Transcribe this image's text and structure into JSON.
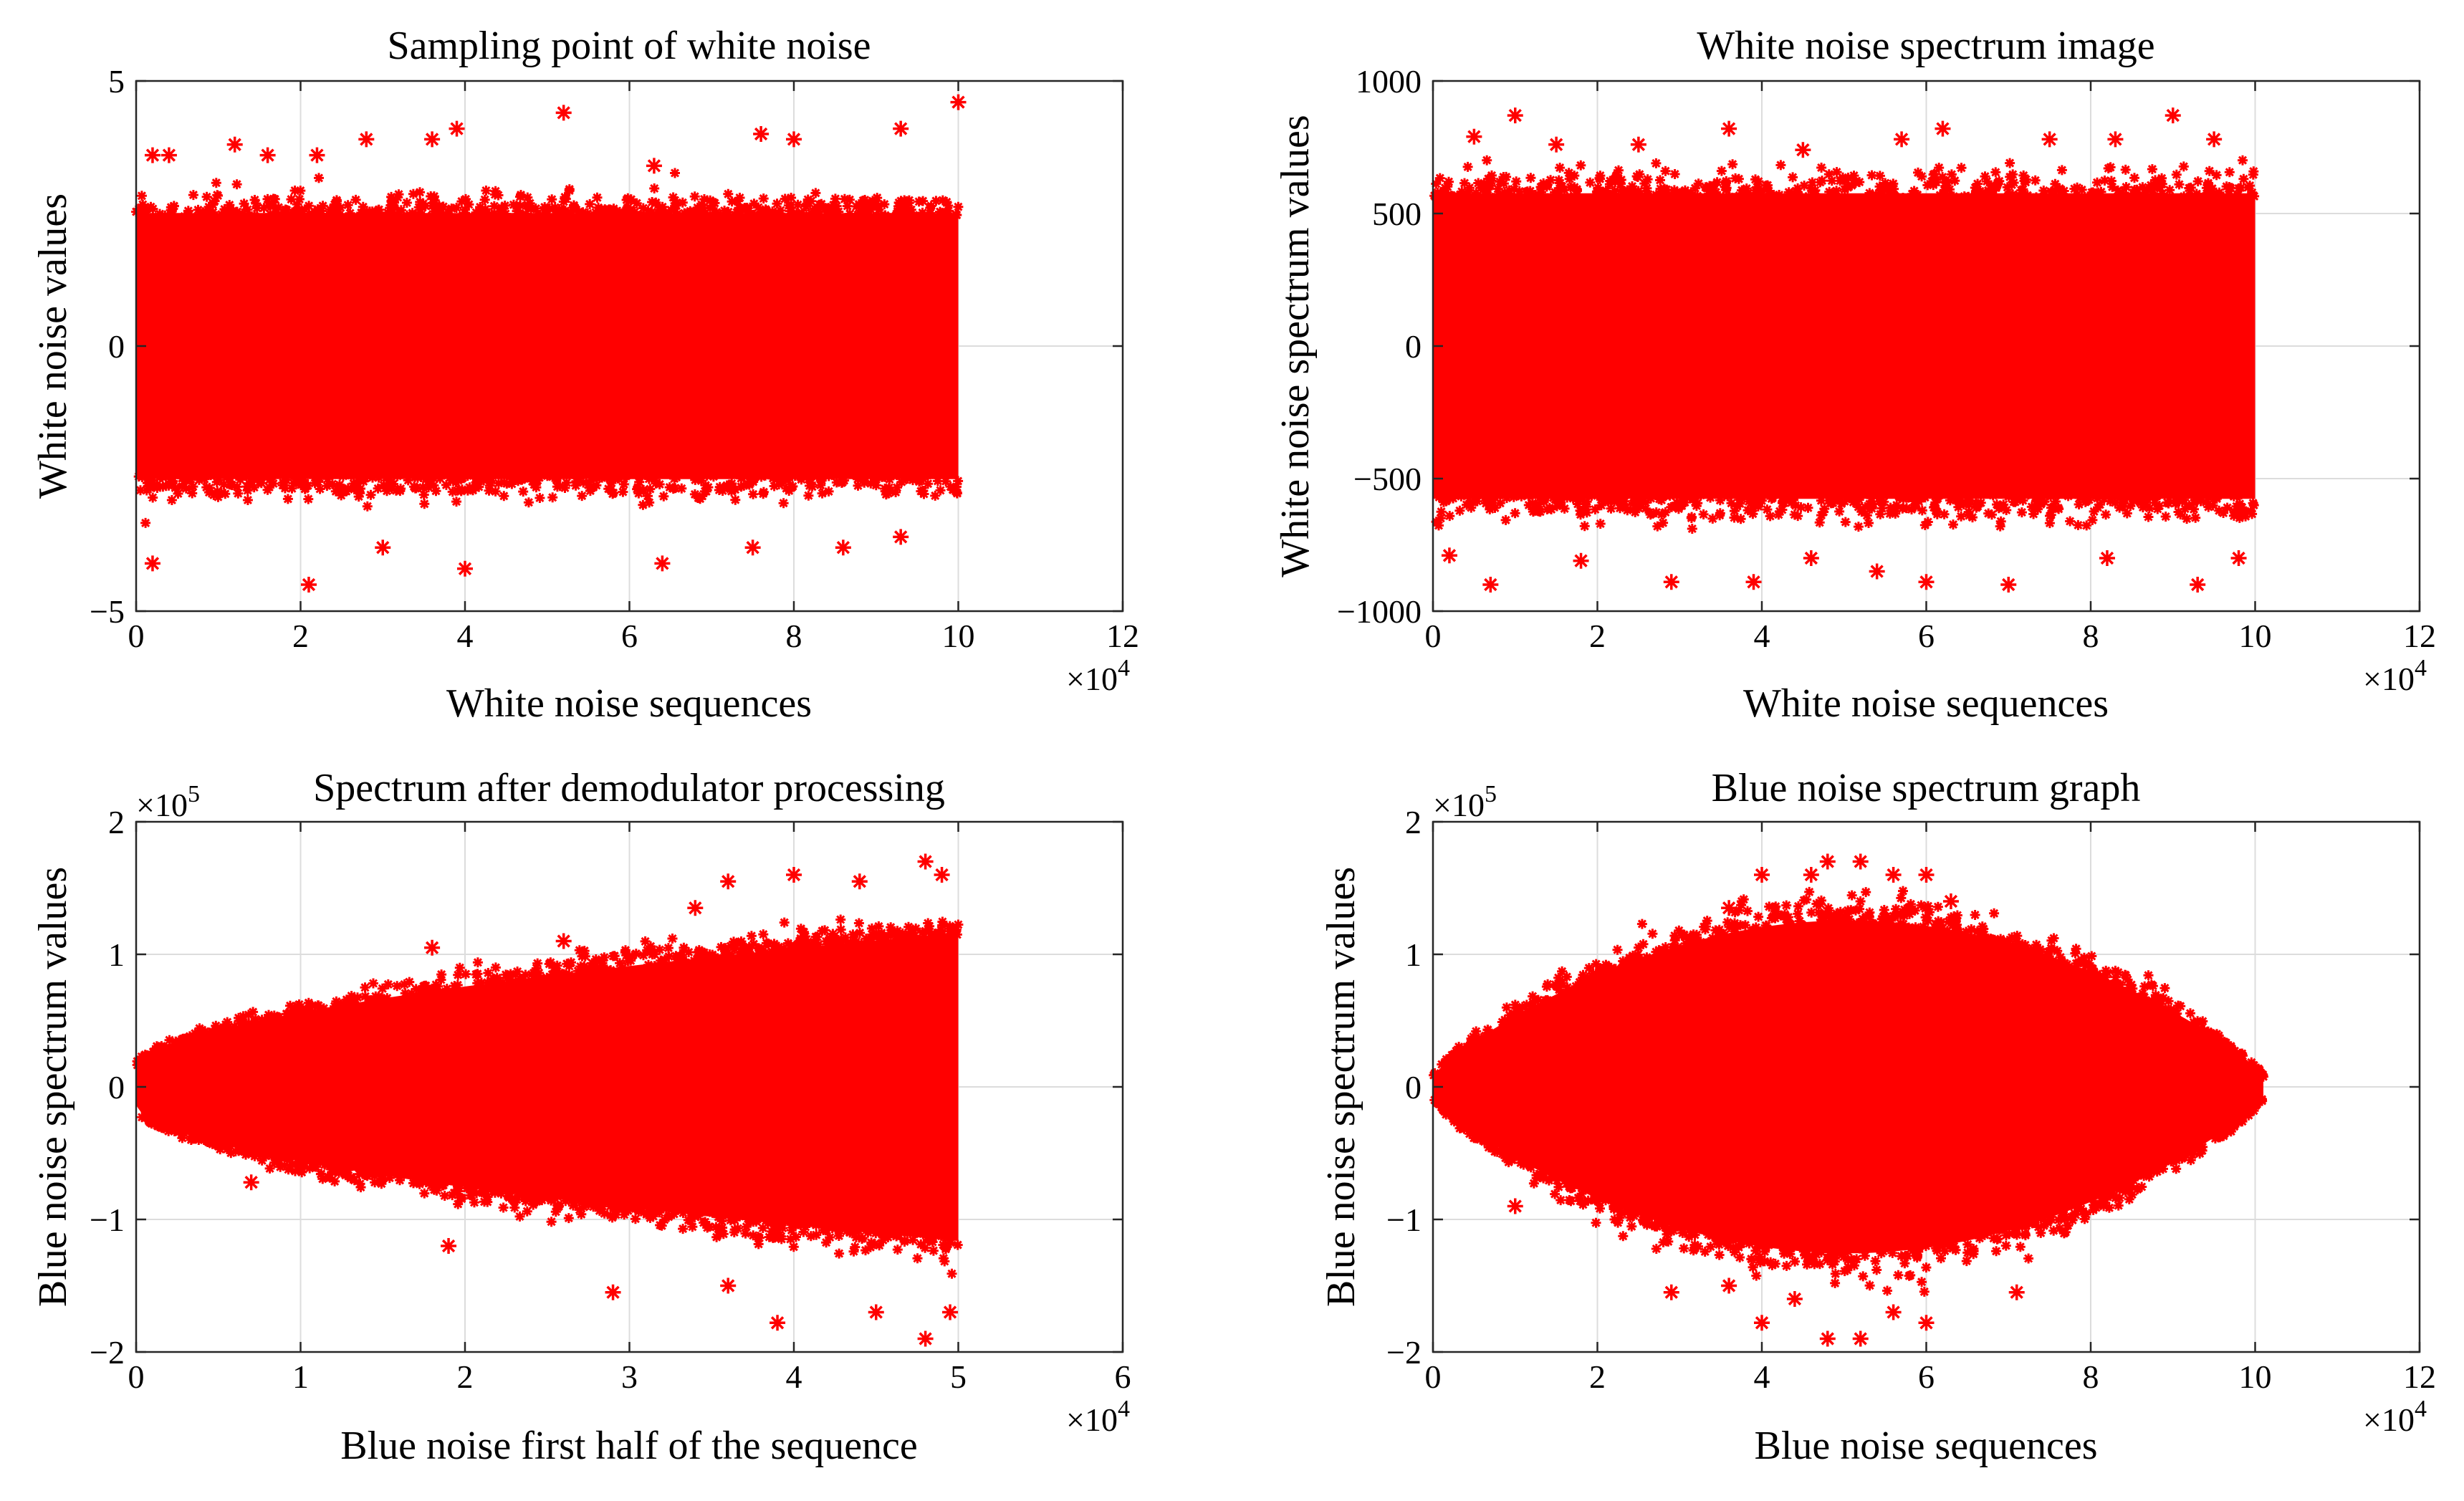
{
  "chart_data": [
    {
      "type": "scatter",
      "title": "Sampling point of white noise",
      "xlabel": "White noise sequences",
      "ylabel": "White noise values",
      "x_multiplier": "×10^4",
      "y_multiplier": "",
      "xlim": [
        0,
        12
      ],
      "ylim": [
        -5,
        5
      ],
      "xticks": [
        0,
        2,
        4,
        6,
        8,
        10,
        12
      ],
      "xtick_labels": [
        "0",
        "2",
        "4",
        "6",
        "8",
        "10",
        "12"
      ],
      "yticks": [
        -5,
        0,
        5
      ],
      "ytick_labels": [
        "−5",
        "0",
        "5"
      ],
      "grid": true,
      "marker": "*",
      "color": "#ff0000",
      "data_x_range": [
        0,
        10
      ],
      "band_shape": "constant",
      "band_half_width": 2.7,
      "outliers": [
        [
          0.2,
          3.6
        ],
        [
          0.4,
          3.6
        ],
        [
          1.2,
          3.8
        ],
        [
          1.6,
          3.6
        ],
        [
          2.2,
          3.6
        ],
        [
          2.8,
          3.9
        ],
        [
          3.6,
          3.9
        ],
        [
          3.9,
          4.1
        ],
        [
          5.2,
          4.4
        ],
        [
          6.3,
          3.4
        ],
        [
          7.6,
          4.0
        ],
        [
          8.0,
          3.9
        ],
        [
          9.3,
          4.1
        ],
        [
          10.0,
          4.6
        ],
        [
          0.2,
          -4.1
        ],
        [
          2.1,
          -4.5
        ],
        [
          3.0,
          -3.8
        ],
        [
          4.0,
          -4.2
        ],
        [
          6.4,
          -4.1
        ],
        [
          7.5,
          -3.8
        ],
        [
          8.6,
          -3.8
        ],
        [
          9.3,
          -3.6
        ]
      ]
    },
    {
      "type": "scatter",
      "title": "White noise spectrum image",
      "xlabel": "White noise sequences",
      "ylabel": "White noise spectrum values",
      "x_multiplier": "×10^4",
      "y_multiplier": "",
      "xlim": [
        0,
        12
      ],
      "ylim": [
        -1000,
        1000
      ],
      "xticks": [
        0,
        2,
        4,
        6,
        8,
        10,
        12
      ],
      "xtick_labels": [
        "0",
        "2",
        "4",
        "6",
        "8",
        "10",
        "12"
      ],
      "yticks": [
        -1000,
        -500,
        0,
        500,
        1000
      ],
      "ytick_labels": [
        "−1000",
        "−500",
        "0",
        "500",
        "1000"
      ],
      "grid": true,
      "marker": "*",
      "color": "#ff0000",
      "data_x_range": [
        0,
        10
      ],
      "band_shape": "constant",
      "band_half_width": 620,
      "outliers": [
        [
          0.5,
          790
        ],
        [
          1.0,
          870
        ],
        [
          1.5,
          760
        ],
        [
          2.5,
          760
        ],
        [
          3.6,
          820
        ],
        [
          4.5,
          740
        ],
        [
          5.7,
          780
        ],
        [
          6.2,
          820
        ],
        [
          7.5,
          780
        ],
        [
          8.3,
          780
        ],
        [
          9.0,
          870
        ],
        [
          9.5,
          780
        ],
        [
          0.2,
          -790
        ],
        [
          0.7,
          -900
        ],
        [
          1.8,
          -810
        ],
        [
          2.9,
          -890
        ],
        [
          3.9,
          -890
        ],
        [
          4.6,
          -800
        ],
        [
          5.4,
          -850
        ],
        [
          6.0,
          -890
        ],
        [
          7.0,
          -900
        ],
        [
          8.2,
          -800
        ],
        [
          9.3,
          -900
        ],
        [
          9.8,
          -800
        ]
      ]
    },
    {
      "type": "scatter",
      "title": "Spectrum after demodulator processing",
      "xlabel": "Blue noise first half of the sequence",
      "ylabel": "Blue noise spectrum values",
      "x_multiplier": "×10^4",
      "y_multiplier": "×10^5",
      "xlim": [
        0,
        6
      ],
      "ylim": [
        -2,
        2
      ],
      "xticks": [
        0,
        1,
        2,
        3,
        4,
        5,
        6
      ],
      "xtick_labels": [
        "0",
        "1",
        "2",
        "3",
        "4",
        "5",
        "6"
      ],
      "yticks": [
        -2,
        -1,
        0,
        1,
        2
      ],
      "ytick_labels": [
        "−2",
        "−1",
        "0",
        "1",
        "2"
      ],
      "grid": true,
      "marker": "*",
      "color": "#ff0000",
      "data_x_range": [
        0,
        5
      ],
      "band_shape": "growing",
      "band_half_width": 1.25,
      "outliers": [
        [
          1.8,
          1.05
        ],
        [
          2.6,
          1.1
        ],
        [
          3.4,
          1.35
        ],
        [
          3.6,
          1.55
        ],
        [
          4.0,
          1.6
        ],
        [
          4.4,
          1.55
        ],
        [
          4.8,
          1.7
        ],
        [
          4.9,
          1.6
        ],
        [
          0.7,
          -0.72
        ],
        [
          1.9,
          -1.2
        ],
        [
          2.9,
          -1.55
        ],
        [
          3.6,
          -1.5
        ],
        [
          3.9,
          -1.78
        ],
        [
          4.5,
          -1.7
        ],
        [
          4.8,
          -1.9
        ],
        [
          4.95,
          -1.7
        ]
      ]
    },
    {
      "type": "scatter",
      "title": "Blue noise spectrum graph",
      "xlabel": "Blue noise sequences",
      "ylabel": "Blue noise spectrum values",
      "x_multiplier": "×10^4",
      "y_multiplier": "×10^5",
      "xlim": [
        0,
        12
      ],
      "ylim": [
        -2,
        2
      ],
      "xticks": [
        0,
        2,
        4,
        6,
        8,
        10,
        12
      ],
      "xtick_labels": [
        "0",
        "2",
        "4",
        "6",
        "8",
        "10",
        "12"
      ],
      "yticks": [
        -2,
        -1,
        0,
        1,
        2
      ],
      "ytick_labels": [
        "−2",
        "−1",
        "0",
        "1",
        "2"
      ],
      "grid": true,
      "marker": "*",
      "color": "#ff0000",
      "data_x_range": [
        0,
        10.1
      ],
      "band_shape": "diamond",
      "band_half_width": 1.35,
      "outliers": [
        [
          3.6,
          1.35
        ],
        [
          4.0,
          1.6
        ],
        [
          4.6,
          1.6
        ],
        [
          4.8,
          1.7
        ],
        [
          5.2,
          1.7
        ],
        [
          5.6,
          1.6
        ],
        [
          6.0,
          1.6
        ],
        [
          6.3,
          1.4
        ],
        [
          1.0,
          -0.9
        ],
        [
          2.9,
          -1.55
        ],
        [
          3.6,
          -1.5
        ],
        [
          4.0,
          -1.78
        ],
        [
          4.4,
          -1.6
        ],
        [
          4.8,
          -1.9
        ],
        [
          5.2,
          -1.9
        ],
        [
          5.6,
          -1.7
        ],
        [
          6.0,
          -1.78
        ],
        [
          7.1,
          -1.55
        ]
      ]
    }
  ]
}
